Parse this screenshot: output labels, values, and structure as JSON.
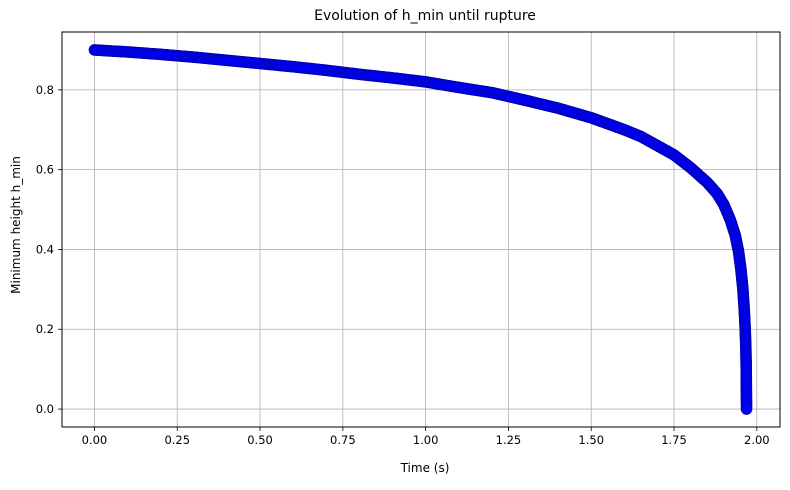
{
  "chart_data": {
    "type": "line",
    "title": "Evolution of h_min until rupture",
    "xlabel": "Time (s)",
    "ylabel": "Minimum height h_min",
    "xlim": [
      -0.098,
      2.07
    ],
    "ylim": [
      -0.045,
      0.945
    ],
    "xticks": [
      0.0,
      0.25,
      0.5,
      0.75,
      1.0,
      1.25,
      1.5,
      1.75,
      2.0
    ],
    "xtick_labels": [
      "0.00",
      "0.25",
      "0.50",
      "0.75",
      "1.00",
      "1.25",
      "1.50",
      "1.75",
      "2.00"
    ],
    "yticks": [
      0.0,
      0.2,
      0.4,
      0.6,
      0.8
    ],
    "ytick_labels": [
      "0.0",
      "0.2",
      "0.4",
      "0.6",
      "0.8"
    ],
    "grid": true,
    "marker": "o",
    "series": [
      {
        "color": "#0000ff",
        "x": [
          0.0,
          0.1,
          0.2,
          0.3,
          0.4,
          0.5,
          0.6,
          0.7,
          0.8,
          0.9,
          1.0,
          1.1,
          1.2,
          1.3,
          1.4,
          1.5,
          1.6,
          1.65,
          1.7,
          1.75,
          1.8,
          1.85,
          1.88,
          1.9,
          1.92,
          1.935,
          1.945,
          1.952,
          1.958,
          1.962,
          1.965,
          1.967,
          1.968,
          1.9685,
          1.969
        ],
        "y": [
          0.9,
          0.895,
          0.889,
          0.882,
          0.874,
          0.866,
          0.858,
          0.849,
          0.839,
          0.83,
          0.82,
          0.806,
          0.793,
          0.774,
          0.754,
          0.73,
          0.7,
          0.683,
          0.66,
          0.637,
          0.605,
          0.568,
          0.54,
          0.513,
          0.474,
          0.435,
          0.394,
          0.35,
          0.3,
          0.25,
          0.2,
          0.15,
          0.1,
          0.05,
          0.0
        ]
      }
    ]
  }
}
